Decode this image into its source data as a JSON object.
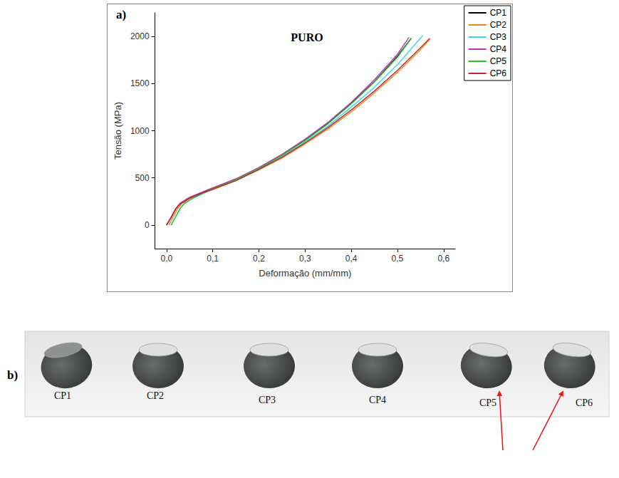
{
  "chart_data": {
    "type": "line",
    "panel_label": "a)",
    "title": "PURO",
    "x_label": "Deformação (mm/mm)",
    "y_label": "Tensão (MPa)",
    "xlim": [
      -0.025,
      0.625
    ],
    "ylim": [
      -250,
      2250
    ],
    "xticks": [
      {
        "value": 0,
        "label": "0,0"
      },
      {
        "value": 0.1,
        "label": "0,1"
      },
      {
        "value": 0.2,
        "label": "0,2"
      },
      {
        "value": 0.3,
        "label": "0,3"
      },
      {
        "value": 0.4,
        "label": "0,4"
      },
      {
        "value": 0.5,
        "label": "0,5"
      },
      {
        "value": 0.6,
        "label": "0,6"
      }
    ],
    "yticks": [
      0,
      500,
      1000,
      1500,
      2000
    ],
    "grid": false,
    "legend": "top-right",
    "series": [
      {
        "name": "CP1",
        "color": "#000000",
        "x": [
          0,
          0.01,
          0.02,
          0.03,
          0.05,
          0.08,
          0.1,
          0.15,
          0.2,
          0.25,
          0.3,
          0.35,
          0.4,
          0.45,
          0.5,
          0.53
        ],
        "values": [
          0,
          80,
          170,
          230,
          290,
          350,
          390,
          480,
          600,
          740,
          900,
          1080,
          1290,
          1520,
          1790,
          1980
        ]
      },
      {
        "name": "CP2",
        "color": "#e8891d",
        "x": [
          0.005,
          0.015,
          0.025,
          0.035,
          0.05,
          0.08,
          0.1,
          0.15,
          0.2,
          0.25,
          0.3,
          0.35,
          0.4,
          0.45,
          0.5,
          0.55,
          0.57
        ],
        "values": [
          0,
          90,
          180,
          235,
          280,
          340,
          375,
          470,
          585,
          710,
          860,
          1020,
          1200,
          1400,
          1620,
          1860,
          1970
        ]
      },
      {
        "name": "CP3",
        "color": "#3ad7e8",
        "x": [
          0.01,
          0.02,
          0.03,
          0.04,
          0.06,
          0.1,
          0.15,
          0.2,
          0.25,
          0.3,
          0.35,
          0.4,
          0.45,
          0.5,
          0.555
        ],
        "values": [
          0,
          90,
          180,
          235,
          290,
          380,
          475,
          590,
          725,
          880,
          1050,
          1250,
          1460,
          1700,
          2010
        ]
      },
      {
        "name": "CP4",
        "color": "#c030c0",
        "x": [
          0,
          0.01,
          0.02,
          0.03,
          0.05,
          0.08,
          0.1,
          0.15,
          0.2,
          0.25,
          0.3,
          0.35,
          0.4,
          0.45,
          0.5,
          0.525
        ],
        "values": [
          0,
          85,
          175,
          235,
          295,
          355,
          395,
          490,
          610,
          750,
          910,
          1090,
          1300,
          1540,
          1810,
          1990
        ]
      },
      {
        "name": "CP5",
        "color": "#27c327",
        "x": [
          0.01,
          0.02,
          0.03,
          0.04,
          0.06,
          0.1,
          0.15,
          0.2,
          0.25,
          0.3,
          0.35,
          0.4,
          0.45,
          0.5,
          0.53
        ],
        "values": [
          0,
          90,
          180,
          235,
          295,
          385,
          480,
          600,
          740,
          895,
          1075,
          1285,
          1515,
          1780,
          1980
        ]
      },
      {
        "name": "CP6",
        "color": "#c0282a",
        "x": [
          0,
          0.01,
          0.02,
          0.03,
          0.05,
          0.08,
          0.1,
          0.15,
          0.2,
          0.25,
          0.3,
          0.35,
          0.4,
          0.45,
          0.5,
          0.55,
          0.57
        ],
        "values": [
          0,
          80,
          170,
          225,
          285,
          345,
          380,
          470,
          590,
          720,
          870,
          1035,
          1220,
          1420,
          1640,
          1880,
          1980
        ]
      }
    ]
  },
  "photo": {
    "panel_label": "b)",
    "specimens": [
      "CP1",
      "CP2",
      "CP3",
      "CP4",
      "CP5",
      "CP6"
    ]
  }
}
